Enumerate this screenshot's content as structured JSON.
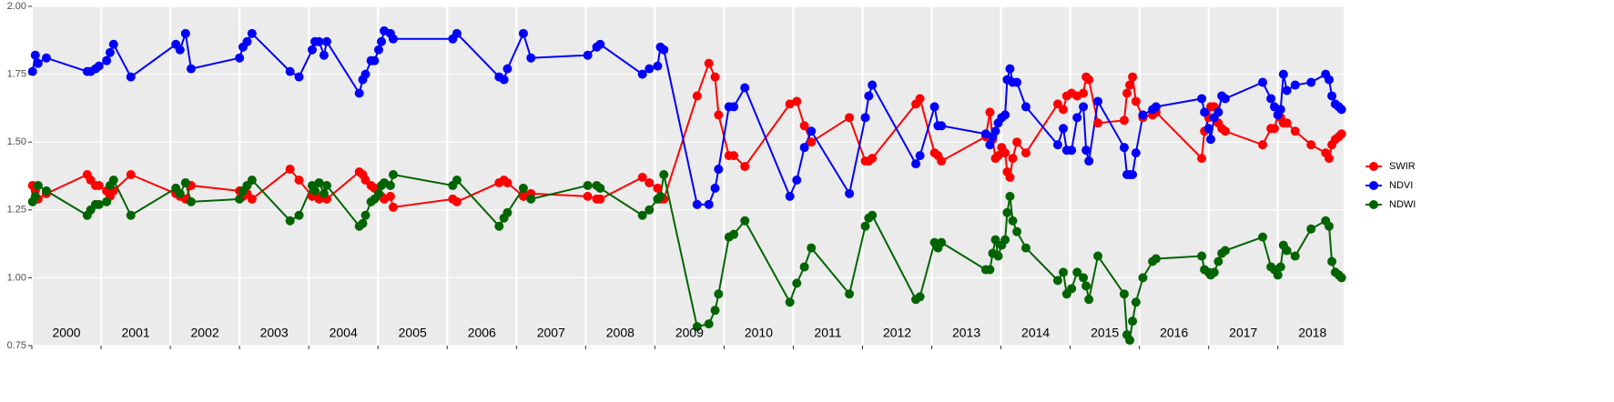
{
  "chart_data": {
    "type": "line",
    "x": [
      2000.01,
      2000.05,
      2000.09,
      2000.21,
      2000.8,
      2000.85,
      2000.92,
      2000.97,
      2001.08,
      2001.13,
      2001.18,
      2001.43,
      2002.08,
      2002.14,
      2002.22,
      2002.3,
      2003.0,
      2003.05,
      2003.11,
      2003.18,
      2003.73,
      2003.86,
      2004.05,
      2004.09,
      2004.15,
      2004.22,
      2004.26,
      2004.73,
      2004.78,
      2004.82,
      2004.9,
      2004.95,
      2005.01,
      2005.05,
      2005.09,
      2005.18,
      2005.22,
      2006.08,
      2006.14,
      2006.75,
      2006.82,
      2006.87,
      2007.1,
      2007.21,
      2008.03,
      2008.16,
      2008.21,
      2008.82,
      2008.92,
      2009.04,
      2009.08,
      2009.13,
      2009.61,
      2009.78,
      2009.87,
      2009.92,
      2010.07,
      2010.14,
      2010.3,
      2010.95,
      2011.05,
      2011.16,
      2011.26,
      2011.81,
      2012.04,
      2012.09,
      2012.14,
      2012.77,
      2012.83,
      2013.04,
      2013.09,
      2013.14,
      2013.78,
      2013.84,
      2013.88,
      2013.92,
      2013.96,
      2014.01,
      2014.06,
      2014.09,
      2014.13,
      2014.17,
      2014.23,
      2014.36,
      2014.82,
      2014.9,
      2014.95,
      2015.02,
      2015.1,
      2015.19,
      2015.23,
      2015.27,
      2015.4,
      2015.78,
      2015.82,
      2015.86,
      2015.9,
      2015.95,
      2016.05,
      2016.19,
      2016.24,
      2016.9,
      2016.94,
      2017.0,
      2017.03,
      2017.08,
      2017.14,
      2017.19,
      2017.24,
      2017.78,
      2017.9,
      2017.95,
      2018.0,
      2018.04,
      2018.08,
      2018.13,
      2018.25,
      2018.48,
      2018.69,
      2018.74,
      2018.78,
      2018.83,
      2018.88,
      2018.92
    ],
    "series": [
      {
        "name": "SWIR",
        "color": "#ff0000",
        "values": [
          1.34,
          1.32,
          1.29,
          1.31,
          1.38,
          1.36,
          1.34,
          1.34,
          1.32,
          1.3,
          1.32,
          1.38,
          1.31,
          1.3,
          1.29,
          1.34,
          1.32,
          1.3,
          1.31,
          1.29,
          1.4,
          1.36,
          1.3,
          1.31,
          1.29,
          1.3,
          1.29,
          1.39,
          1.38,
          1.36,
          1.34,
          1.33,
          1.31,
          1.3,
          1.29,
          1.3,
          1.26,
          1.29,
          1.28,
          1.35,
          1.36,
          1.35,
          1.3,
          1.31,
          1.3,
          1.29,
          1.29,
          1.37,
          1.35,
          1.33,
          1.29,
          1.29,
          1.67,
          1.79,
          1.74,
          1.6,
          1.45,
          1.45,
          1.41,
          1.64,
          1.65,
          1.56,
          1.5,
          1.59,
          1.43,
          1.43,
          1.44,
          1.64,
          1.66,
          1.46,
          1.45,
          1.43,
          1.52,
          1.61,
          1.51,
          1.44,
          1.45,
          1.48,
          1.46,
          1.39,
          1.37,
          1.44,
          1.5,
          1.46,
          1.64,
          1.62,
          1.67,
          1.68,
          1.67,
          1.68,
          1.74,
          1.73,
          1.57,
          1.58,
          1.68,
          1.71,
          1.74,
          1.65,
          1.59,
          1.6,
          1.61,
          1.44,
          1.54,
          1.59,
          1.63,
          1.63,
          1.57,
          1.55,
          1.54,
          1.49,
          1.55,
          1.55,
          1.6,
          1.59,
          1.57,
          1.57,
          1.54,
          1.49,
          1.46,
          1.44,
          1.49,
          1.51,
          1.52,
          1.53
        ]
      },
      {
        "name": "NDVI",
        "color": "#0000ff",
        "values": [
          1.76,
          1.82,
          1.79,
          1.81,
          1.76,
          1.76,
          1.77,
          1.78,
          1.8,
          1.83,
          1.86,
          1.74,
          1.86,
          1.84,
          1.9,
          1.77,
          1.81,
          1.85,
          1.87,
          1.9,
          1.76,
          1.74,
          1.84,
          1.87,
          1.87,
          1.82,
          1.87,
          1.68,
          1.73,
          1.75,
          1.8,
          1.8,
          1.84,
          1.87,
          1.91,
          1.9,
          1.88,
          1.88,
          1.9,
          1.74,
          1.73,
          1.77,
          1.9,
          1.81,
          1.82,
          1.85,
          1.86,
          1.75,
          1.77,
          1.78,
          1.85,
          1.84,
          1.27,
          1.27,
          1.33,
          1.4,
          1.63,
          1.63,
          1.7,
          1.3,
          1.36,
          1.48,
          1.54,
          1.31,
          1.59,
          1.67,
          1.71,
          1.42,
          1.45,
          1.63,
          1.56,
          1.56,
          1.53,
          1.49,
          1.52,
          1.54,
          1.57,
          1.59,
          1.6,
          1.73,
          1.77,
          1.72,
          1.72,
          1.63,
          1.49,
          1.55,
          1.47,
          1.47,
          1.59,
          1.63,
          1.47,
          1.43,
          1.65,
          1.48,
          1.38,
          1.38,
          1.38,
          1.46,
          1.6,
          1.62,
          1.63,
          1.66,
          1.61,
          1.55,
          1.51,
          1.59,
          1.61,
          1.67,
          1.66,
          1.72,
          1.66,
          1.63,
          1.6,
          1.62,
          1.75,
          1.69,
          1.71,
          1.72,
          1.75,
          1.73,
          1.67,
          1.64,
          1.63,
          1.62
        ]
      },
      {
        "name": "NDWI",
        "color": "#006400",
        "values": [
          1.28,
          1.3,
          1.34,
          1.32,
          1.23,
          1.25,
          1.27,
          1.27,
          1.28,
          1.34,
          1.36,
          1.23,
          1.33,
          1.31,
          1.35,
          1.28,
          1.29,
          1.32,
          1.34,
          1.36,
          1.21,
          1.23,
          1.34,
          1.32,
          1.35,
          1.31,
          1.34,
          1.19,
          1.2,
          1.23,
          1.28,
          1.29,
          1.31,
          1.34,
          1.35,
          1.34,
          1.38,
          1.34,
          1.36,
          1.19,
          1.22,
          1.24,
          1.33,
          1.29,
          1.34,
          1.34,
          1.33,
          1.23,
          1.25,
          1.29,
          1.3,
          1.38,
          0.82,
          0.83,
          0.88,
          0.94,
          1.15,
          1.16,
          1.21,
          0.91,
          0.98,
          1.04,
          1.11,
          0.94,
          1.19,
          1.22,
          1.23,
          0.92,
          0.93,
          1.13,
          1.11,
          1.13,
          1.03,
          1.03,
          1.09,
          1.14,
          1.08,
          1.12,
          1.14,
          1.24,
          1.3,
          1.21,
          1.17,
          1.11,
          0.99,
          1.02,
          0.94,
          0.96,
          1.02,
          1.0,
          0.97,
          0.92,
          1.08,
          0.94,
          0.79,
          0.77,
          0.84,
          0.91,
          1.0,
          1.06,
          1.07,
          1.08,
          1.03,
          1.02,
          1.01,
          1.02,
          1.06,
          1.09,
          1.1,
          1.15,
          1.04,
          1.03,
          1.01,
          1.04,
          1.12,
          1.1,
          1.08,
          1.18,
          1.21,
          1.19,
          1.06,
          1.02,
          1.01,
          1.0
        ]
      }
    ],
    "xlim": [
      2000,
      2018.95
    ],
    "xticks": [
      2000,
      2001,
      2002,
      2003,
      2004,
      2005,
      2006,
      2007,
      2008,
      2009,
      2010,
      2011,
      2012,
      2013,
      2014,
      2015,
      2016,
      2017,
      2018
    ],
    "ylim": [
      0.75,
      2.0
    ],
    "yticks": [
      0.75,
      {
        "value": 1,
        "label": "1.00"
      },
      1.25,
      {
        "value": 1.5,
        "label": "1.50"
      },
      1.75,
      {
        "value": 2,
        "label": "2.00"
      }
    ],
    "grid": true,
    "legend": "right"
  }
}
